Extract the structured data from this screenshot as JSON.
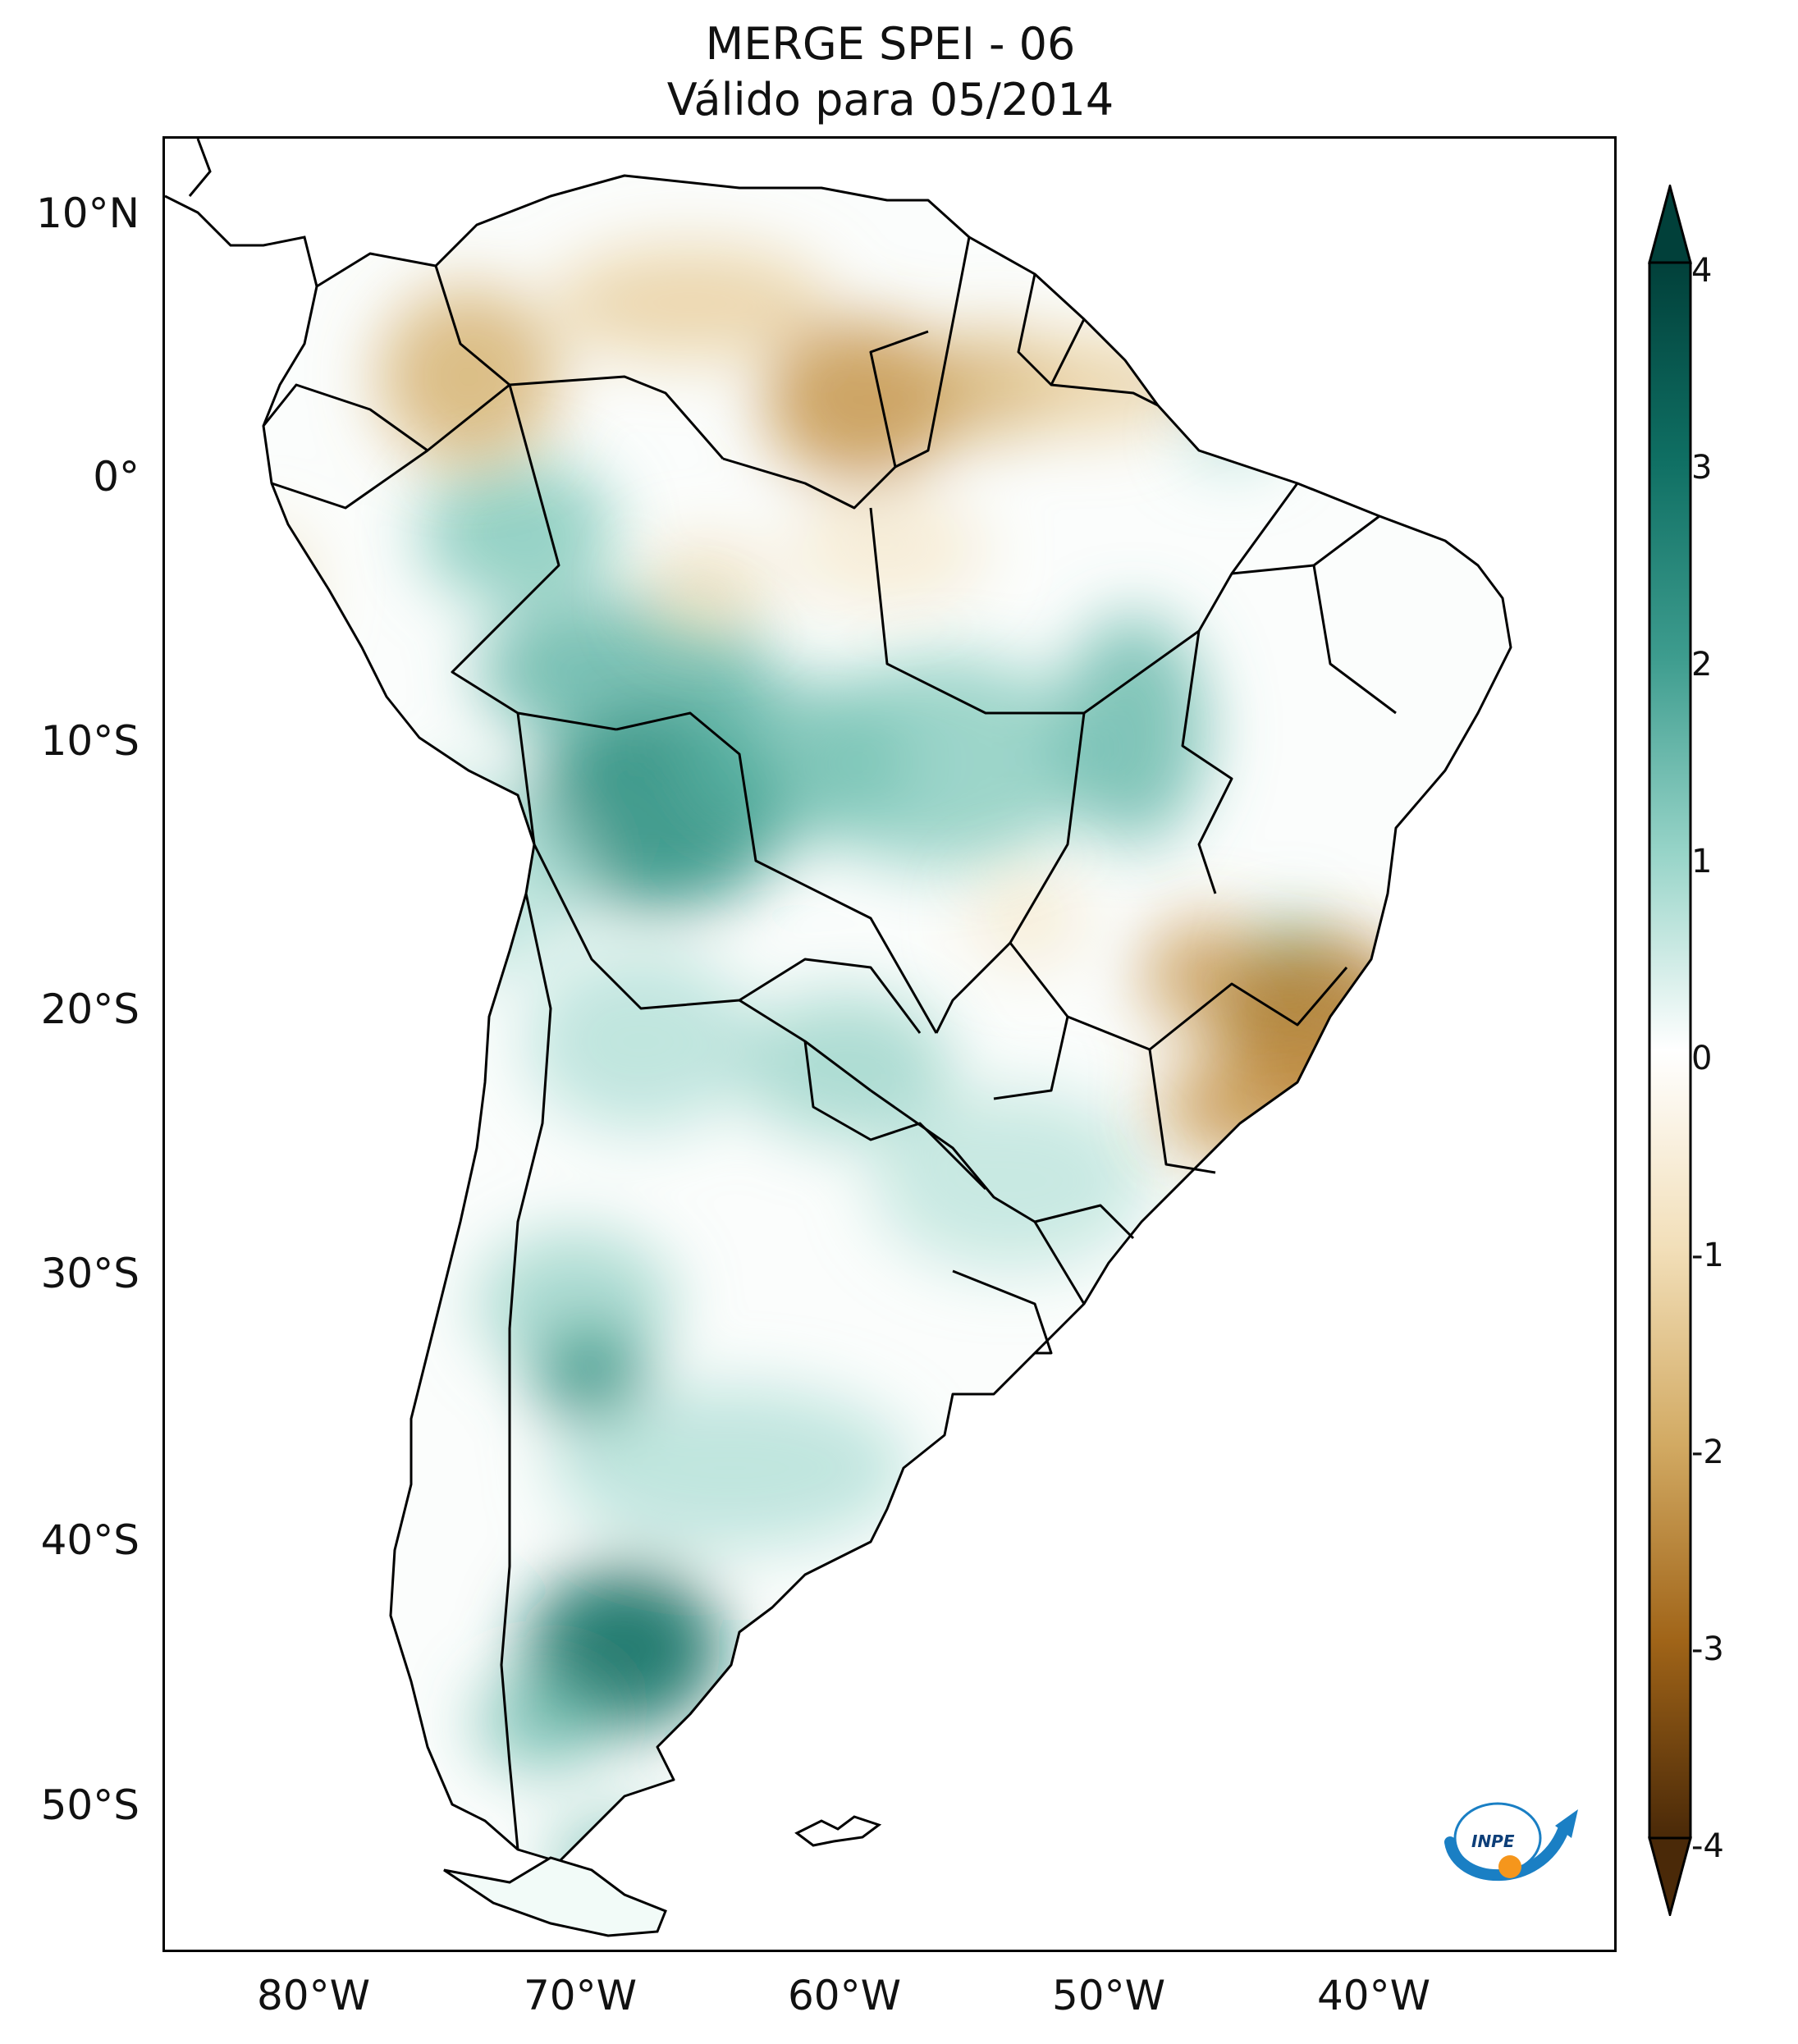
{
  "title": {
    "line1": "MERGE   SPEI - 06",
    "line2": "Válido para 05/2014"
  },
  "map": {
    "region": "South America",
    "variable": "SPEI - 06",
    "source": "MERGE",
    "valid_date": "05/2014",
    "lat_labels": [
      "10°N",
      "0°",
      "10°S",
      "20°S",
      "30°S",
      "40°S",
      "50°S"
    ],
    "lon_labels": [
      "80°W",
      "70°W",
      "60°W",
      "50°W",
      "40°W"
    ]
  },
  "colorbar": {
    "ticks": [
      "4",
      "3",
      "2",
      "1",
      "0",
      "-1",
      "-2",
      "-3",
      "-4"
    ],
    "range": [
      -4,
      4
    ],
    "colors": {
      "wet_extreme": "#01403a",
      "wet_strong": "#0f6f63",
      "wet_mid": "#5ab2a3",
      "wet_light": "#c8ebe3",
      "neutral": "#ffffff",
      "dry_light": "#f4e2c0",
      "dry_mid": "#d0a85f",
      "dry_strong": "#9a5f16",
      "dry_extreme": "#4a2908"
    }
  },
  "logo": {
    "text": "INPE",
    "color_blue": "#1a7fc4",
    "color_orange": "#f5961c"
  }
}
